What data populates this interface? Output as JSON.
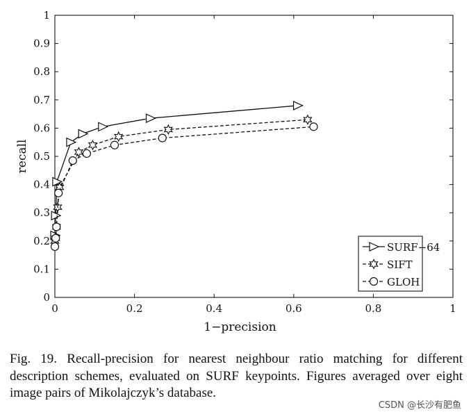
{
  "chart_data": {
    "type": "line",
    "title": "",
    "xlabel": "1−precision",
    "ylabel": "recall",
    "xlim": [
      0,
      1
    ],
    "ylim": [
      0,
      1
    ],
    "xticks": [
      "0",
      "0.2",
      "0.4",
      "0.6",
      "0.8",
      "1"
    ],
    "xtick_values": [
      0,
      0.2,
      0.4,
      0.6,
      0.8,
      1
    ],
    "yticks": [
      "0",
      "0.1",
      "0.2",
      "0.3",
      "0.4",
      "0.5",
      "0.6",
      "0.7",
      "0.8",
      "0.9",
      "1"
    ],
    "ytick_values": [
      0,
      0.1,
      0.2,
      0.3,
      0.4,
      0.5,
      0.6,
      0.7,
      0.8,
      0.9,
      1
    ],
    "grid": false,
    "legend_position": "bottom-right",
    "series": [
      {
        "name": "SURF−64",
        "line_style": "solid",
        "marker": "triangle-right",
        "x": [
          0.0,
          0.002,
          0.005,
          0.04,
          0.07,
          0.12,
          0.24,
          0.61
        ],
        "y": [
          0.22,
          0.29,
          0.41,
          0.55,
          0.58,
          0.605,
          0.635,
          0.68
        ]
      },
      {
        "name": "SIFT",
        "line_style": "dashed",
        "marker": "star",
        "x": [
          0.0,
          0.002,
          0.004,
          0.007,
          0.012,
          0.06,
          0.095,
          0.16,
          0.285,
          0.635
        ],
        "y": [
          0.2,
          0.21,
          0.25,
          0.32,
          0.39,
          0.515,
          0.54,
          0.57,
          0.595,
          0.63
        ]
      },
      {
        "name": "GLOH",
        "line_style": "dashed",
        "marker": "circle",
        "x": [
          0.0,
          0.002,
          0.004,
          0.009,
          0.045,
          0.08,
          0.15,
          0.27,
          0.65
        ],
        "y": [
          0.18,
          0.21,
          0.25,
          0.37,
          0.485,
          0.51,
          0.54,
          0.565,
          0.605
        ]
      }
    ]
  },
  "caption": {
    "text": "Fig. 19. Recall-precision for nearest neighbour ratio matching for different description schemes, evaluated on SURF keypoints. Figures averaged over eight image pairs of Mikolajczyk’s database."
  },
  "watermark": {
    "text": "CSDN @长沙有肥鱼"
  }
}
